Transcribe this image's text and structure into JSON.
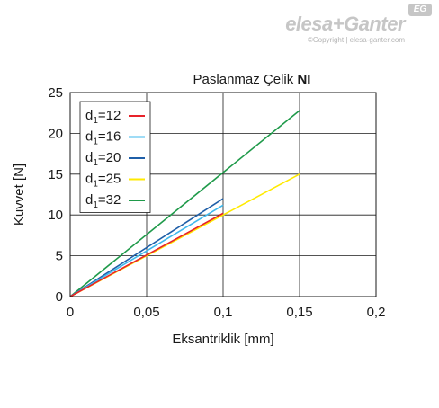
{
  "brand": {
    "logo_text": "elesa+Ganter",
    "badge_text": "EG",
    "copyright": "©Copyright | elesa-ganter.com"
  },
  "chart_data": {
    "type": "line",
    "title_main": "Paslanmaz Çelik ",
    "title_bold": "NI",
    "xlabel": "Eksantriklik [mm]",
    "ylabel": "Kuvvet [N]",
    "xlim": [
      0,
      0.2
    ],
    "ylim": [
      0,
      25
    ],
    "x_ticks": [
      0,
      0.05,
      0.1,
      0.15,
      0.2
    ],
    "x_tick_labels": [
      "0",
      "0,05",
      "0,1",
      "0,15",
      "0,2"
    ],
    "y_ticks": [
      0,
      5,
      10,
      15,
      20,
      25
    ],
    "y_tick_labels": [
      "0",
      "5",
      "10",
      "15",
      "20",
      "25"
    ],
    "grid": true,
    "legend_position": "top-left",
    "series": [
      {
        "name": "d1=12",
        "label_base": "d",
        "label_sub": "1",
        "label_rest": "=12",
        "color": "#e8232a",
        "x": [
          0,
          0.1
        ],
        "y": [
          0,
          10.2
        ]
      },
      {
        "name": "d1=16",
        "label_base": "d",
        "label_sub": "1",
        "label_rest": "=16",
        "color": "#3fb8ec",
        "x": [
          0,
          0.1
        ],
        "y": [
          0,
          11.2
        ]
      },
      {
        "name": "d1=20",
        "label_base": "d",
        "label_sub": "1",
        "label_rest": "=20",
        "color": "#1f5fa8",
        "x": [
          0,
          0.1
        ],
        "y": [
          0,
          12
        ]
      },
      {
        "name": "d1=25",
        "label_base": "d",
        "label_sub": "1",
        "label_rest": "=25",
        "color": "#ffea00",
        "x": [
          0,
          0.15
        ],
        "y": [
          0,
          15
        ]
      },
      {
        "name": "d1=32",
        "label_base": "d",
        "label_sub": "1",
        "label_rest": "=32",
        "color": "#1f9a4a",
        "x": [
          0,
          0.15
        ],
        "y": [
          0,
          22.8
        ]
      }
    ]
  }
}
